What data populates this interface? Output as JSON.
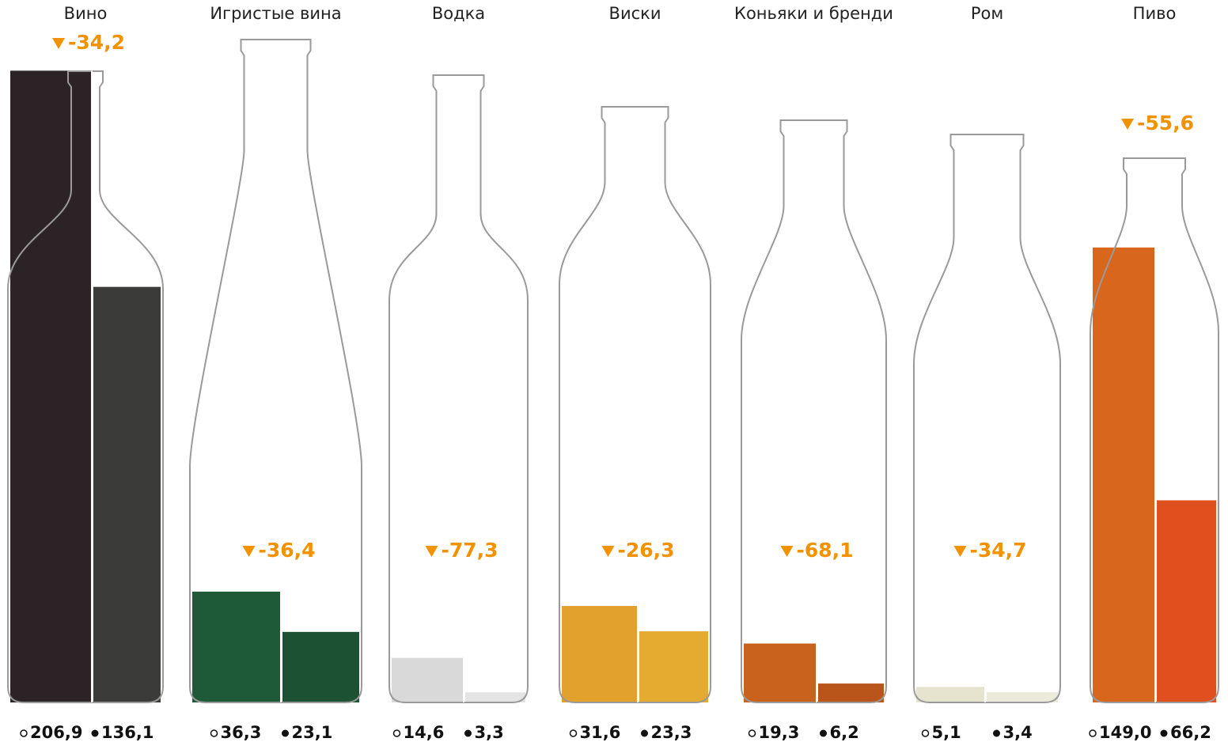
{
  "chart_data": {
    "type": "bar",
    "categories": [
      "Вино",
      "Игристые вина",
      "Водка",
      "Виски",
      "Коньяки и бренди",
      "Ром",
      "Пиво"
    ],
    "series": [
      {
        "color": [
          "#2b2326",
          "#1f5a38",
          "#d9d9d9",
          "#e2a12c",
          "#c8621c",
          "#e6e3cf",
          "#d8661c"
        ],
        "values": [
          206.9,
          36.3,
          14.6,
          31.6,
          19.3,
          5.1,
          149.0
        ],
        "value_labels": [
          "206,9",
          "36,3",
          "14,6",
          "31,6",
          "19,3",
          "5,1",
          "149,0"
        ]
      },
      {
        "color": [
          "#3b3b39",
          "#1c5233",
          "#e4e4e4",
          "#e5aa30",
          "#b9541a",
          "#eceadb",
          "#e0501e"
        ],
        "values": [
          136.1,
          23.1,
          3.3,
          23.3,
          6.2,
          3.4,
          66.2
        ],
        "value_labels": [
          "136,1",
          "23,1",
          "3,3",
          "23,3",
          "6,2",
          "3,4",
          "66,2"
        ]
      }
    ],
    "change": {
      "color": "#f39200",
      "values": [
        -34.2,
        -36.4,
        -77.3,
        -26.3,
        -68.1,
        -34.7,
        -55.6
      ],
      "value_labels": [
        "-34,2",
        "-36,4",
        "-77,3",
        "-26,3",
        "-68,1",
        "-34,7",
        "-55,6"
      ]
    }
  }
}
